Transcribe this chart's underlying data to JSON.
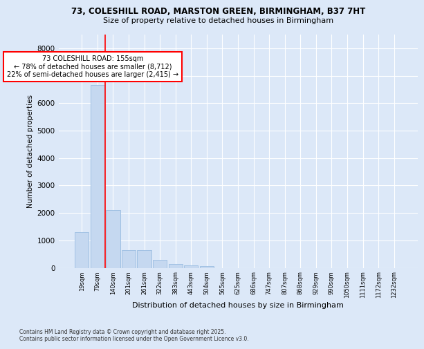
{
  "title1": "73, COLESHILL ROAD, MARSTON GREEN, BIRMINGHAM, B37 7HT",
  "title2": "Size of property relative to detached houses in Birmingham",
  "xlabel": "Distribution of detached houses by size in Birmingham",
  "ylabel": "Number of detached properties",
  "footer": "Contains HM Land Registry data © Crown copyright and database right 2025.\nContains public sector information licensed under the Open Government Licence v3.0.",
  "categories": [
    "19sqm",
    "79sqm",
    "140sqm",
    "201sqm",
    "261sqm",
    "322sqm",
    "383sqm",
    "443sqm",
    "504sqm",
    "565sqm",
    "625sqm",
    "686sqm",
    "747sqm",
    "807sqm",
    "868sqm",
    "929sqm",
    "990sqm",
    "1050sqm",
    "1111sqm",
    "1172sqm",
    "1232sqm"
  ],
  "values": [
    1300,
    6650,
    2100,
    650,
    650,
    300,
    150,
    100,
    60,
    0,
    0,
    0,
    0,
    0,
    0,
    0,
    0,
    0,
    0,
    0,
    0
  ],
  "bar_color": "#c5d8f0",
  "bar_edge_color": "#99bce0",
  "vline_color": "red",
  "vline_pos": 1.5,
  "annotation_title": "73 COLESHILL ROAD: 155sqm",
  "annotation_line1": "← 78% of detached houses are smaller (8,712)",
  "annotation_line2": "22% of semi-detached houses are larger (2,415) →",
  "ylim": [
    0,
    8500
  ],
  "yticks": [
    0,
    1000,
    2000,
    3000,
    4000,
    5000,
    6000,
    7000,
    8000
  ],
  "fig_bg_color": "#dce8f8",
  "plot_bg_color": "#dce8f8",
  "grid_color": "white"
}
